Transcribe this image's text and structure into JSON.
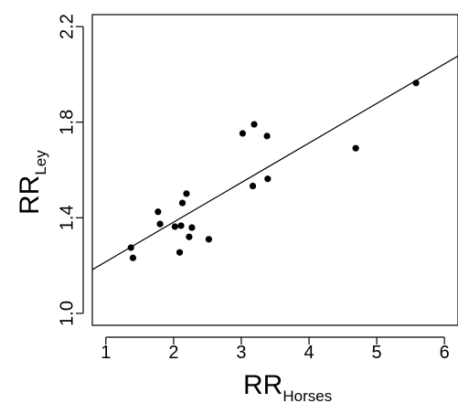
{
  "chart_data": {
    "type": "scatter",
    "xlabel": "RR",
    "xlabel_subscript": "Horses",
    "ylabel": "RR",
    "ylabel_subscript": "Ley",
    "xlim": [
      0.8,
      6.2
    ],
    "ylim": [
      0.95,
      2.25
    ],
    "x_ticks": [
      1,
      2,
      3,
      4,
      5,
      6
    ],
    "x_tick_labels": [
      "1",
      "2",
      "3",
      "4",
      "5",
      "6"
    ],
    "y_ticks": [
      1.0,
      1.4,
      1.8,
      2.2
    ],
    "y_tick_labels": [
      "1.0",
      "1.4",
      "1.8",
      "2.2"
    ],
    "grid": false,
    "legend": "none",
    "colors": {
      "points": "#000000",
      "line": "#000000",
      "frame": "#000000"
    },
    "points": [
      {
        "x": 1.37,
        "y": 1.275
      },
      {
        "x": 1.4,
        "y": 1.232
      },
      {
        "x": 1.77,
        "y": 1.425
      },
      {
        "x": 1.8,
        "y": 1.374
      },
      {
        "x": 2.02,
        "y": 1.363
      },
      {
        "x": 2.09,
        "y": 1.255
      },
      {
        "x": 2.11,
        "y": 1.367
      },
      {
        "x": 2.13,
        "y": 1.462
      },
      {
        "x": 2.19,
        "y": 1.501
      },
      {
        "x": 2.23,
        "y": 1.32
      },
      {
        "x": 2.27,
        "y": 1.359
      },
      {
        "x": 2.52,
        "y": 1.31
      },
      {
        "x": 3.02,
        "y": 1.753
      },
      {
        "x": 3.17,
        "y": 1.533
      },
      {
        "x": 3.19,
        "y": 1.791
      },
      {
        "x": 3.38,
        "y": 1.742
      },
      {
        "x": 3.39,
        "y": 1.563
      },
      {
        "x": 4.69,
        "y": 1.691
      },
      {
        "x": 5.58,
        "y": 1.964
      }
    ],
    "regression_line": {
      "x": [
        0.8,
        6.2
      ],
      "y": [
        1.183,
        2.077
      ]
    }
  }
}
